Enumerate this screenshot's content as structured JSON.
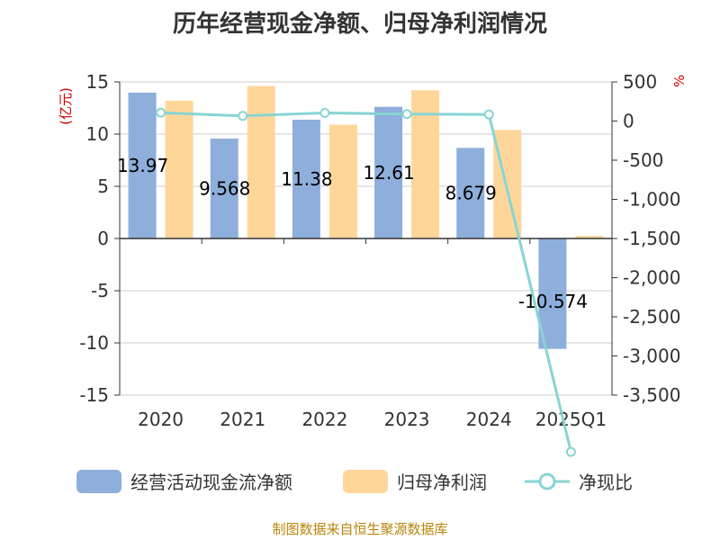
{
  "chart_data": {
    "type": "bar",
    "title": "历年经营现金净额、归母净利润情况",
    "categories": [
      "2020",
      "2021",
      "2022",
      "2023",
      "2024",
      "2025Q1"
    ],
    "series": [
      {
        "name": "经营活动现金流净额",
        "type": "bar",
        "axis": "left",
        "color": "#8eaedc",
        "values": [
          13.97,
          9.568,
          11.38,
          12.61,
          8.679,
          -10.574
        ],
        "labels": [
          "13.97",
          "9.568",
          "11.38",
          "12.61",
          "8.679",
          "-10.574"
        ]
      },
      {
        "name": "归母净利润",
        "type": "bar",
        "axis": "left",
        "color": "#ffd699",
        "values": [
          13.2,
          14.6,
          10.9,
          14.2,
          10.4,
          0.25
        ]
      },
      {
        "name": "净现比",
        "type": "line",
        "axis": "right",
        "color": "#88d4d4",
        "values": [
          106,
          66,
          104,
          89,
          84,
          -4225
        ]
      }
    ],
    "left_axis": {
      "unit": "(亿元)",
      "ylim": [
        -15,
        15
      ],
      "ticks": [
        15,
        10,
        5,
        0,
        -5,
        -10,
        -15
      ],
      "tick_labels": [
        "15",
        "10",
        "5",
        "0",
        "-5",
        "-10",
        "-15"
      ]
    },
    "right_axis": {
      "unit": "%",
      "ylim": [
        -3500,
        500
      ],
      "ticks": [
        500,
        0,
        -500,
        -1000,
        -1500,
        -2000,
        -2500,
        -3000,
        -3500
      ],
      "tick_labels": [
        "500",
        "0",
        "-500",
        "-1,000",
        "-1,500",
        "-2,000",
        "-2,500",
        "-3,000",
        "-3,500"
      ]
    },
    "grid": true,
    "legend_position": "bottom"
  },
  "source_text": "制图数据来自恒生聚源数据库"
}
